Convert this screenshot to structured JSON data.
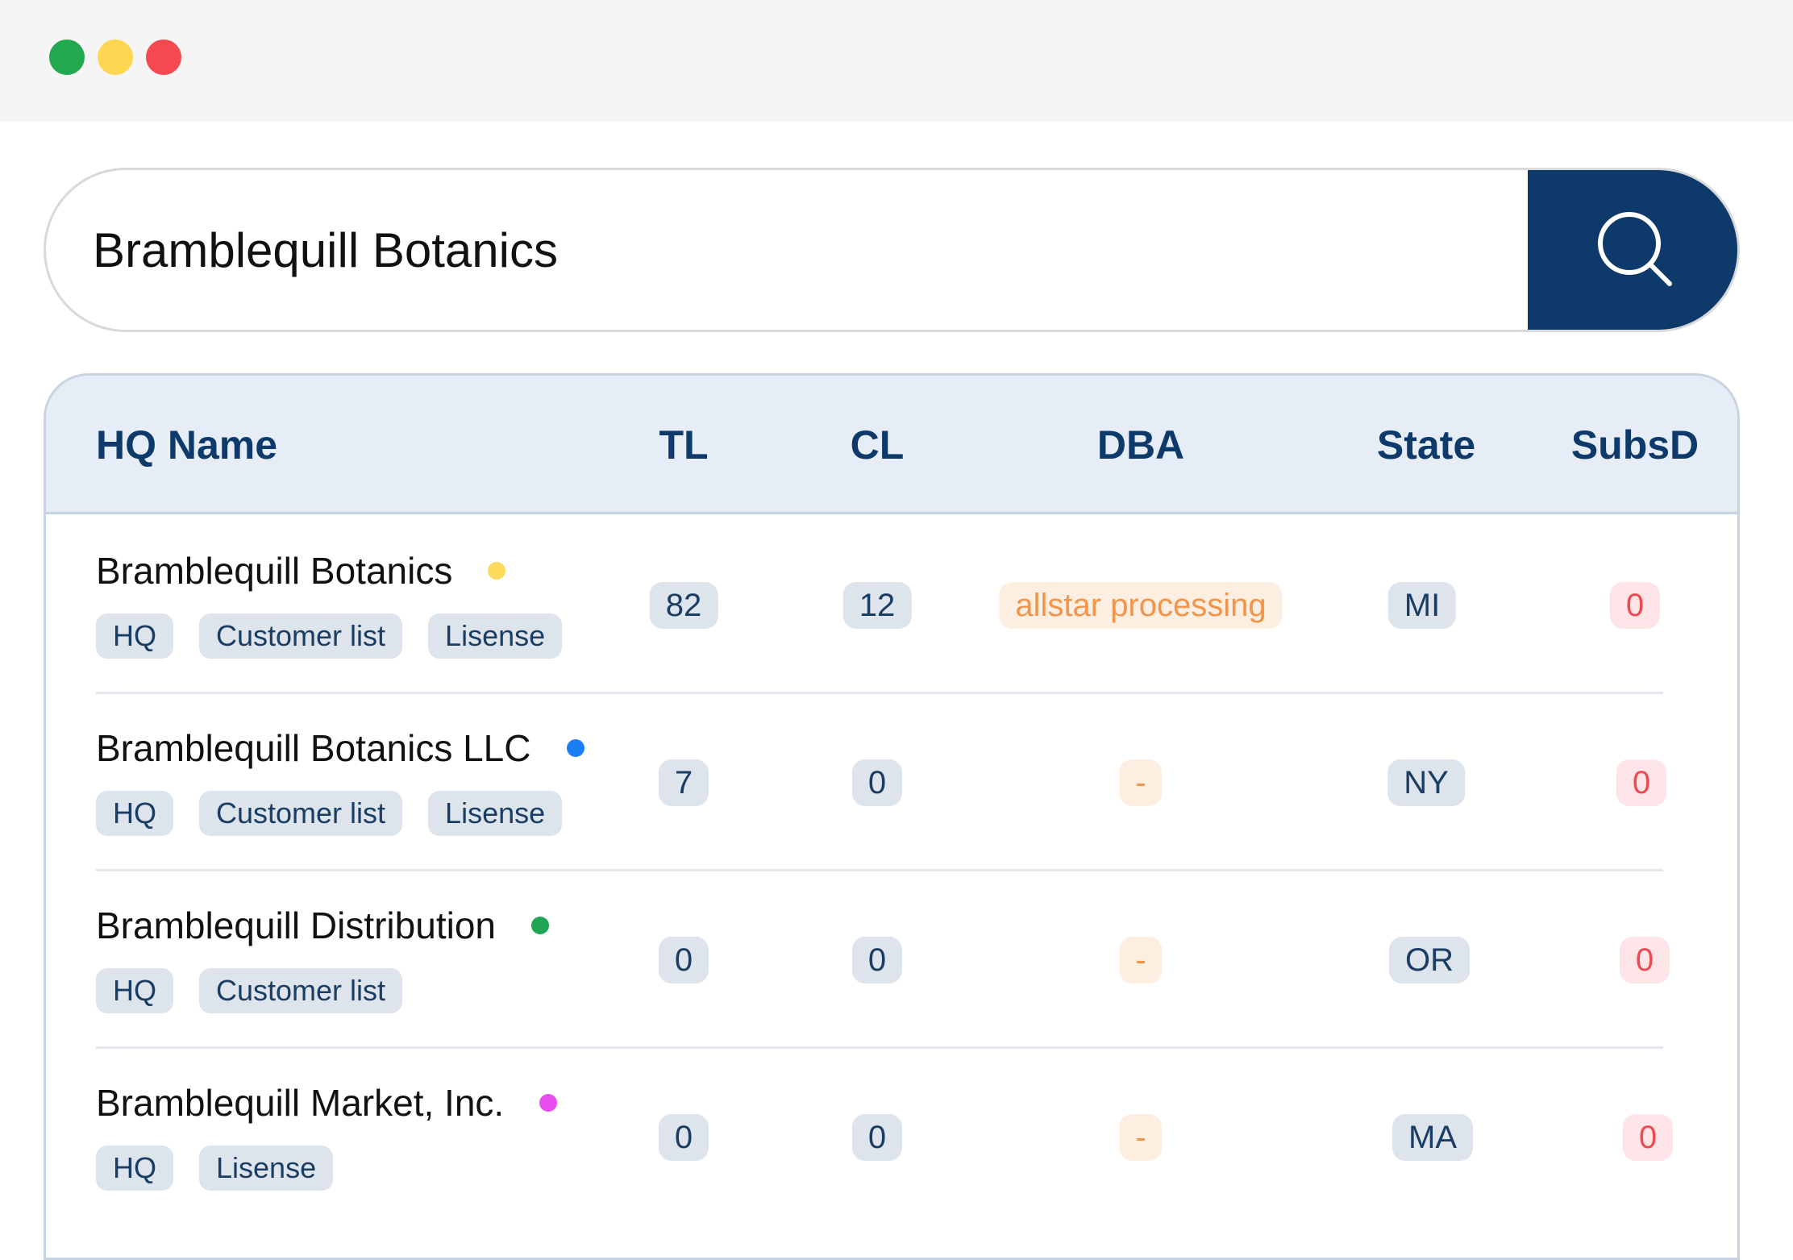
{
  "window": {
    "buttons": [
      {
        "name": "green",
        "color": "#22a94f"
      },
      {
        "name": "yellow",
        "color": "#ffd651"
      },
      {
        "name": "red",
        "color": "#f44a4f"
      }
    ]
  },
  "search": {
    "value": "Bramblequill Botanics",
    "placeholder": "",
    "button_icon": "search-icon"
  },
  "table": {
    "headers": [
      "HQ Name",
      "TL",
      "CL",
      "DBA",
      "State",
      "SubsD"
    ],
    "rows": [
      {
        "name": "Bramblequill Botanics",
        "dot_color": "#fbd95a",
        "tags": [
          "HQ",
          "Customer list",
          "Lisense"
        ],
        "tl": "82",
        "cl": "12",
        "dba": "allstar processing",
        "state": "MI",
        "subsd": "0"
      },
      {
        "name": "Bramblequill Botanics LLC",
        "dot_color": "#1a7ff5",
        "tags": [
          "HQ",
          "Customer list",
          "Lisense"
        ],
        "tl": "7",
        "cl": "0",
        "dba": "-",
        "state": "NY",
        "subsd": "0"
      },
      {
        "name": "Bramblequill Distribution",
        "dot_color": "#20a552",
        "tags": [
          "HQ",
          "Customer list"
        ],
        "tl": "0",
        "cl": "0",
        "dba": "-",
        "state": "OR",
        "subsd": "0"
      },
      {
        "name": "Bramblequill Market, Inc.",
        "dot_color": "#e94ff0",
        "tags": [
          "HQ",
          "Lisense"
        ],
        "tl": "0",
        "cl": "0",
        "dba": "-",
        "state": "MA",
        "subsd": "0"
      }
    ]
  }
}
